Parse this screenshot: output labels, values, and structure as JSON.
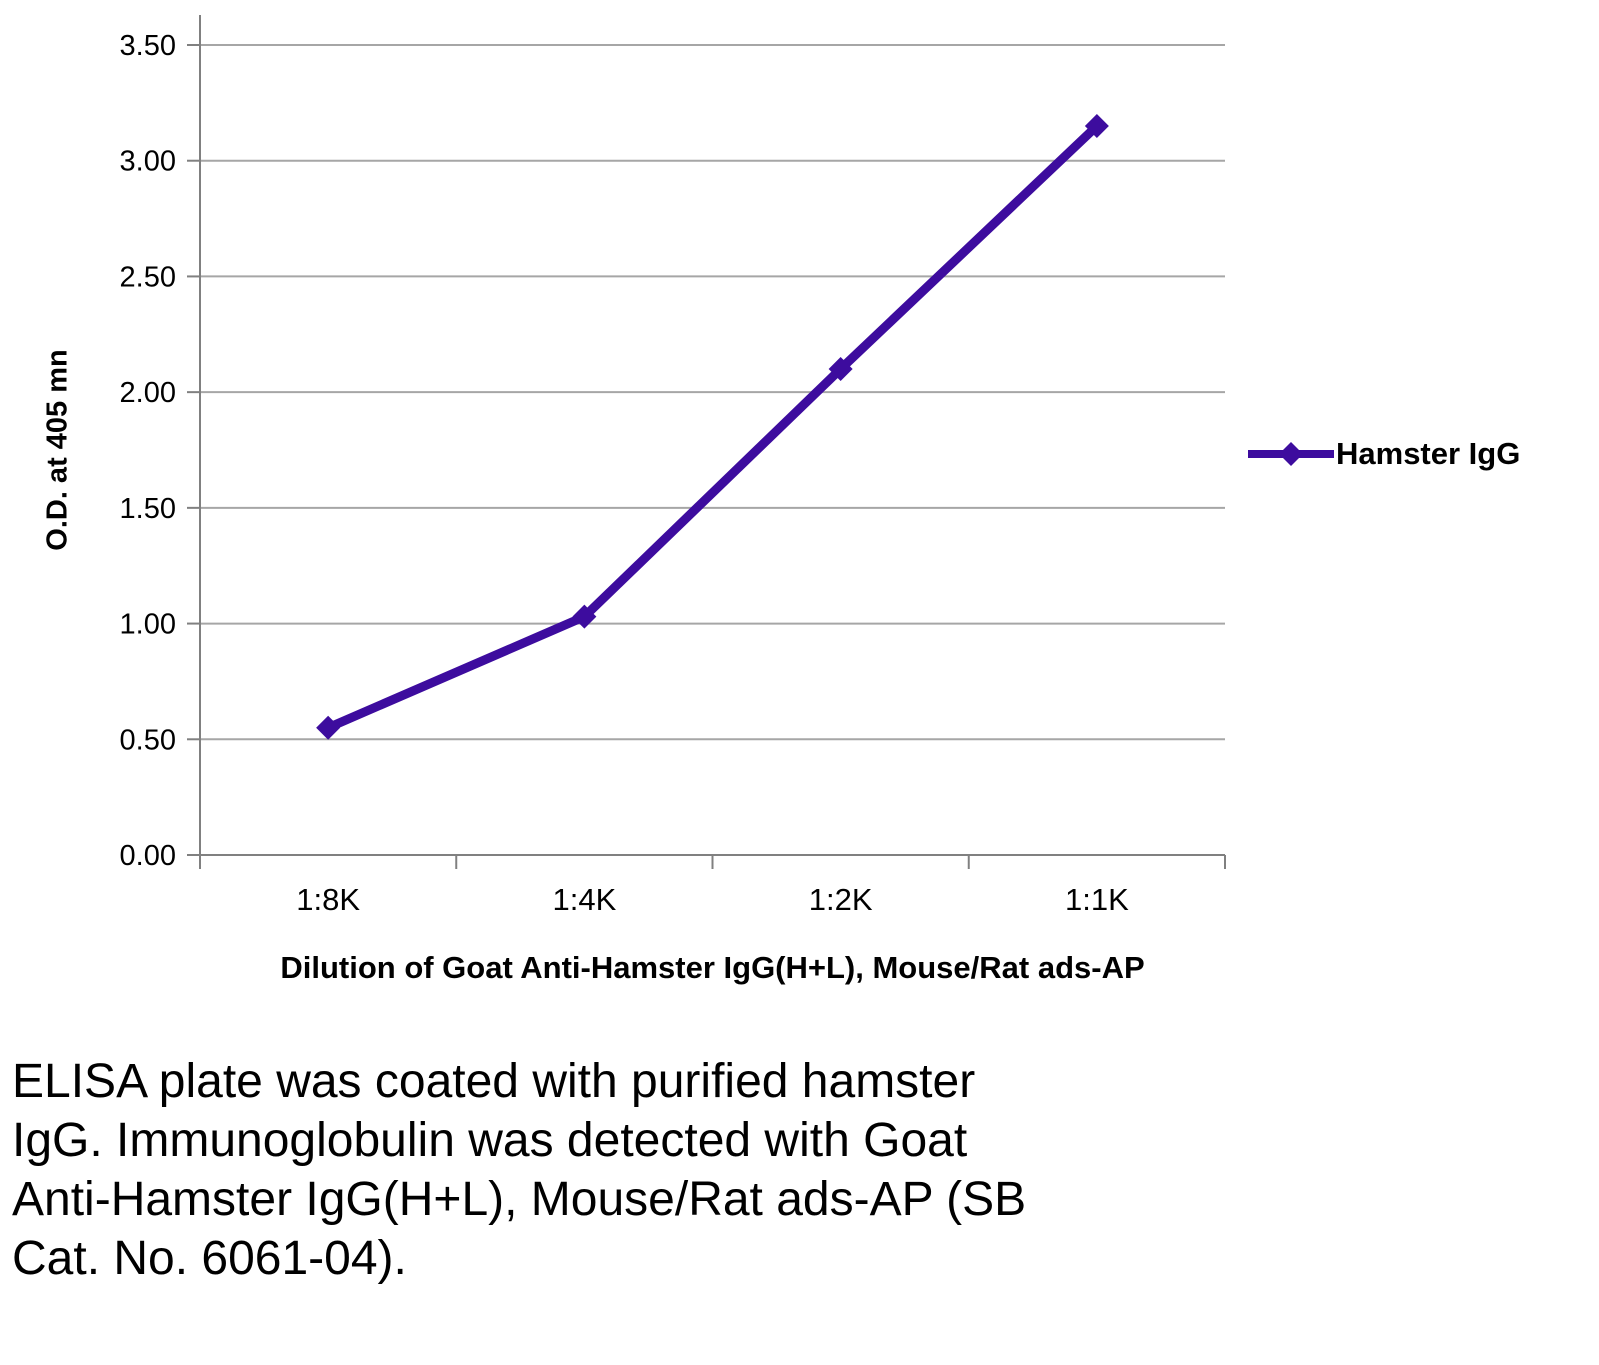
{
  "chart_data": {
    "type": "line",
    "title": "",
    "categories": [
      "1:8K",
      "1:4K",
      "1:2K",
      "1:1K"
    ],
    "series": [
      {
        "name": "Hamster IgG",
        "values": [
          0.55,
          1.03,
          2.1,
          3.15
        ],
        "color": "#3D0C9E"
      }
    ],
    "xlabel": "Dilution of Goat Anti-Hamster IgG(H+L), Mouse/Rat ads-AP",
    "ylabel": "O.D. at 405 mn",
    "ylim": [
      0,
      3.5
    ],
    "ytick_step": 0.5,
    "ytick_labels": [
      "0.00",
      "0.50",
      "1.00",
      "1.50",
      "2.00",
      "2.50",
      "3.00",
      "3.50"
    ],
    "grid": true,
    "grid_color": "#A6A6A6",
    "axis_color": "#808080",
    "legend_position": "right"
  },
  "caption": "ELISA plate was coated with purified hamster\nIgG.  Immunoglobulin was detected with Goat\nAnti-Hamster IgG(H+L), Mouse/Rat ads-AP (SB\nCat. No. 6061-04)."
}
